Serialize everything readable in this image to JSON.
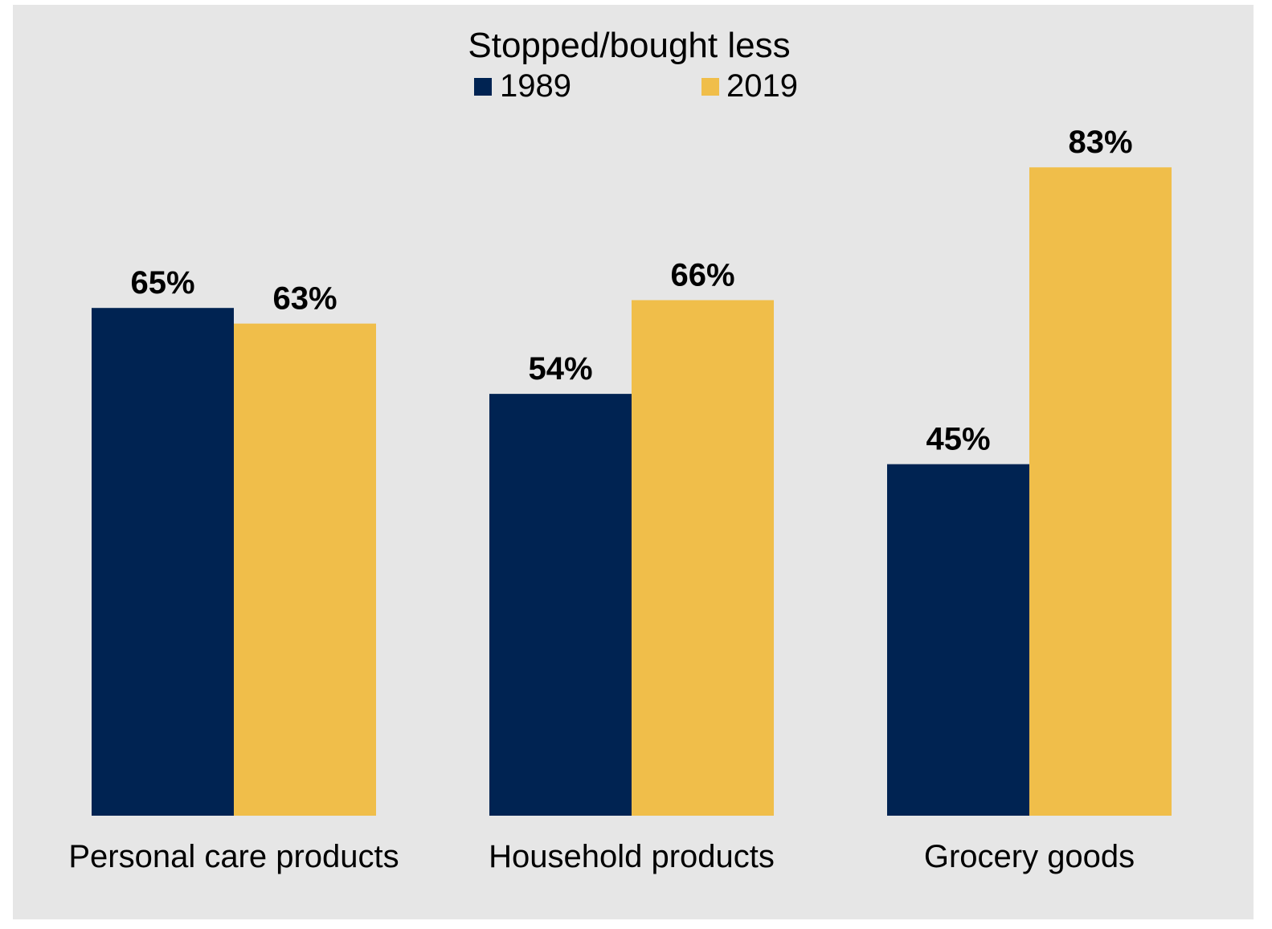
{
  "chart_data": {
    "type": "bar",
    "title": "Stopped/bought less",
    "categories": [
      "Personal care products",
      "Household products",
      "Grocery goods"
    ],
    "series": [
      {
        "name": "1989",
        "values": [
          65,
          54,
          45
        ],
        "labels": [
          "65%",
          "54%",
          "45%"
        ],
        "color": "#002352"
      },
      {
        "name": "2019",
        "values": [
          63,
          66,
          83
        ],
        "labels": [
          "63%",
          "66%",
          "83%"
        ],
        "color": "#f0be4a"
      }
    ],
    "ylim": [
      0,
      100
    ],
    "grid": false,
    "legend": "top-center",
    "background": "#e6e6e6"
  }
}
